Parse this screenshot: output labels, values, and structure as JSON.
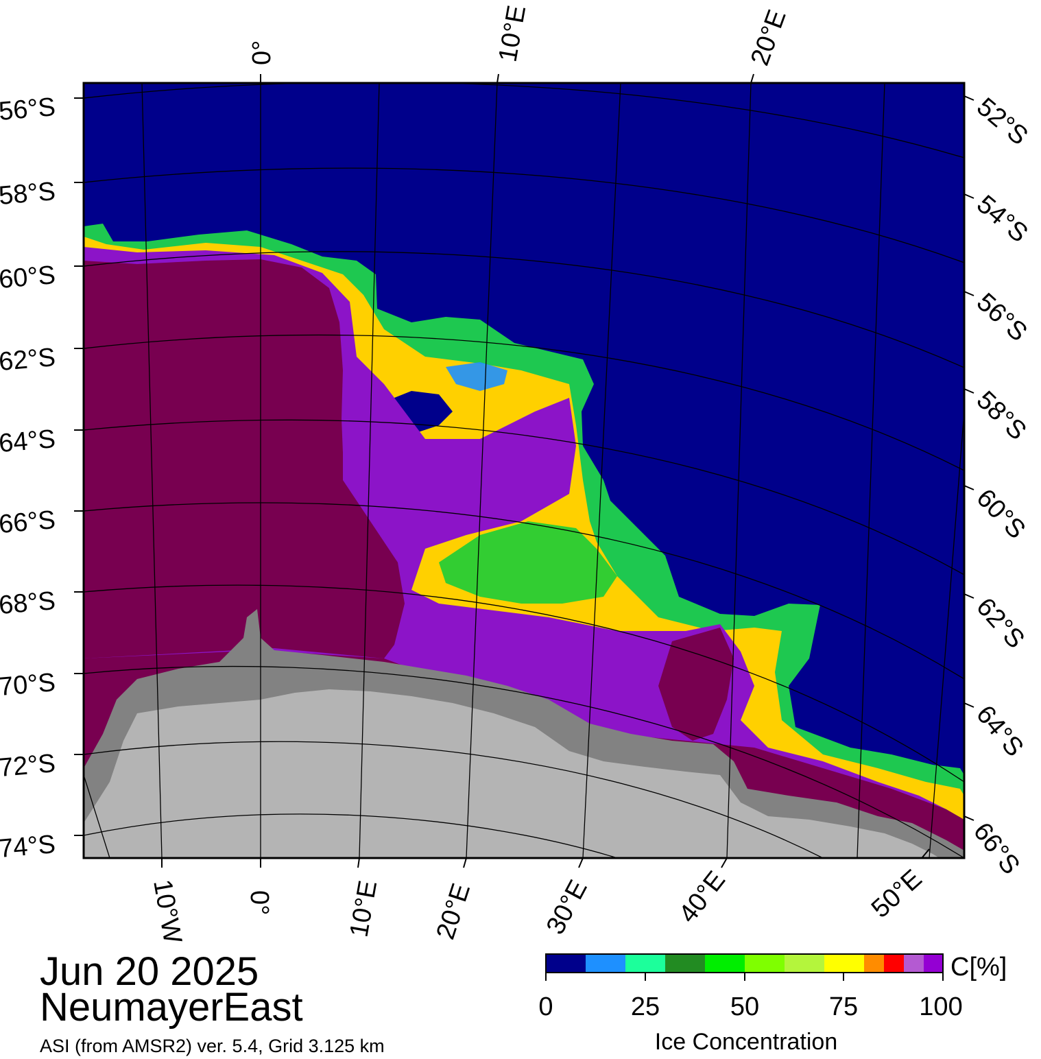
{
  "title": {
    "date": "Jun 20 2025",
    "region": "NeumayerEast",
    "product": "ASI (from AMSR2) ver. 5.4,  Grid 3.125 km"
  },
  "top_lon_labels": [
    "0°",
    "10°E",
    "20°E"
  ],
  "bottom_lon_labels": [
    "10°W",
    "0°",
    "10°E",
    "20°E",
    "30°E",
    "40°E",
    "50°E"
  ],
  "left_lat_labels": [
    "56°S",
    "58°S",
    "60°S",
    "62°S",
    "64°S",
    "66°S",
    "68°S",
    "70°S",
    "72°S",
    "74°S"
  ],
  "right_lat_labels": [
    "52°S",
    "54°S",
    "56°S",
    "58°S",
    "60°S",
    "62°S",
    "64°S",
    "66°S"
  ],
  "legend": {
    "unit_label": "C[%]",
    "title": "Ice Concentration",
    "ticks": [
      "0",
      "25",
      "50",
      "75",
      "100"
    ],
    "colors": [
      "#00008b",
      "#1e90ff",
      "#1cff9b",
      "#228b22",
      "#00ee00",
      "#7fff00",
      "#b4f53c",
      "#ffff00",
      "#ff8c00",
      "#ff0000",
      "#b45ad2",
      "#9400d3"
    ]
  },
  "colors": {
    "open_water": "#00008b",
    "ice_100": "#780050",
    "land": "#b4b4b4",
    "ice_shelf": "#828282"
  }
}
